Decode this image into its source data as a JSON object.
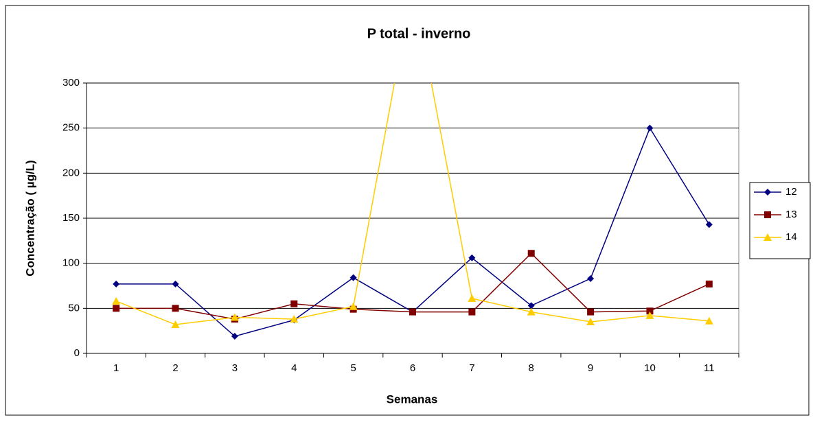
{
  "chart_data": {
    "type": "line",
    "title": "P total - inverno",
    "x_label": "Semanas",
    "y_label": "Concentração ( µg/L)",
    "categories": [
      "1",
      "2",
      "3",
      "4",
      "5",
      "6",
      "7",
      "8",
      "9",
      "10",
      "11"
    ],
    "series": [
      {
        "name": "12",
        "color": "#000080",
        "marker": "diamond",
        "values": [
          77,
          77,
          19,
          37,
          84,
          46,
          106,
          53,
          83,
          250,
          143
        ]
      },
      {
        "name": "13",
        "color": "#800000",
        "marker": "square",
        "values": [
          50,
          50,
          38,
          55,
          49,
          46,
          46,
          111,
          46,
          47,
          77
        ]
      },
      {
        "name": "14",
        "color": "#FFCC00",
        "marker": "triangle",
        "values": [
          58,
          32,
          40,
          38,
          52,
          410,
          61,
          46,
          35,
          42,
          36
        ]
      }
    ],
    "ylim": [
      0,
      300
    ],
    "yticks": [
      0,
      50,
      100,
      150,
      200,
      250,
      300
    ],
    "grid": true,
    "legend": "right"
  }
}
